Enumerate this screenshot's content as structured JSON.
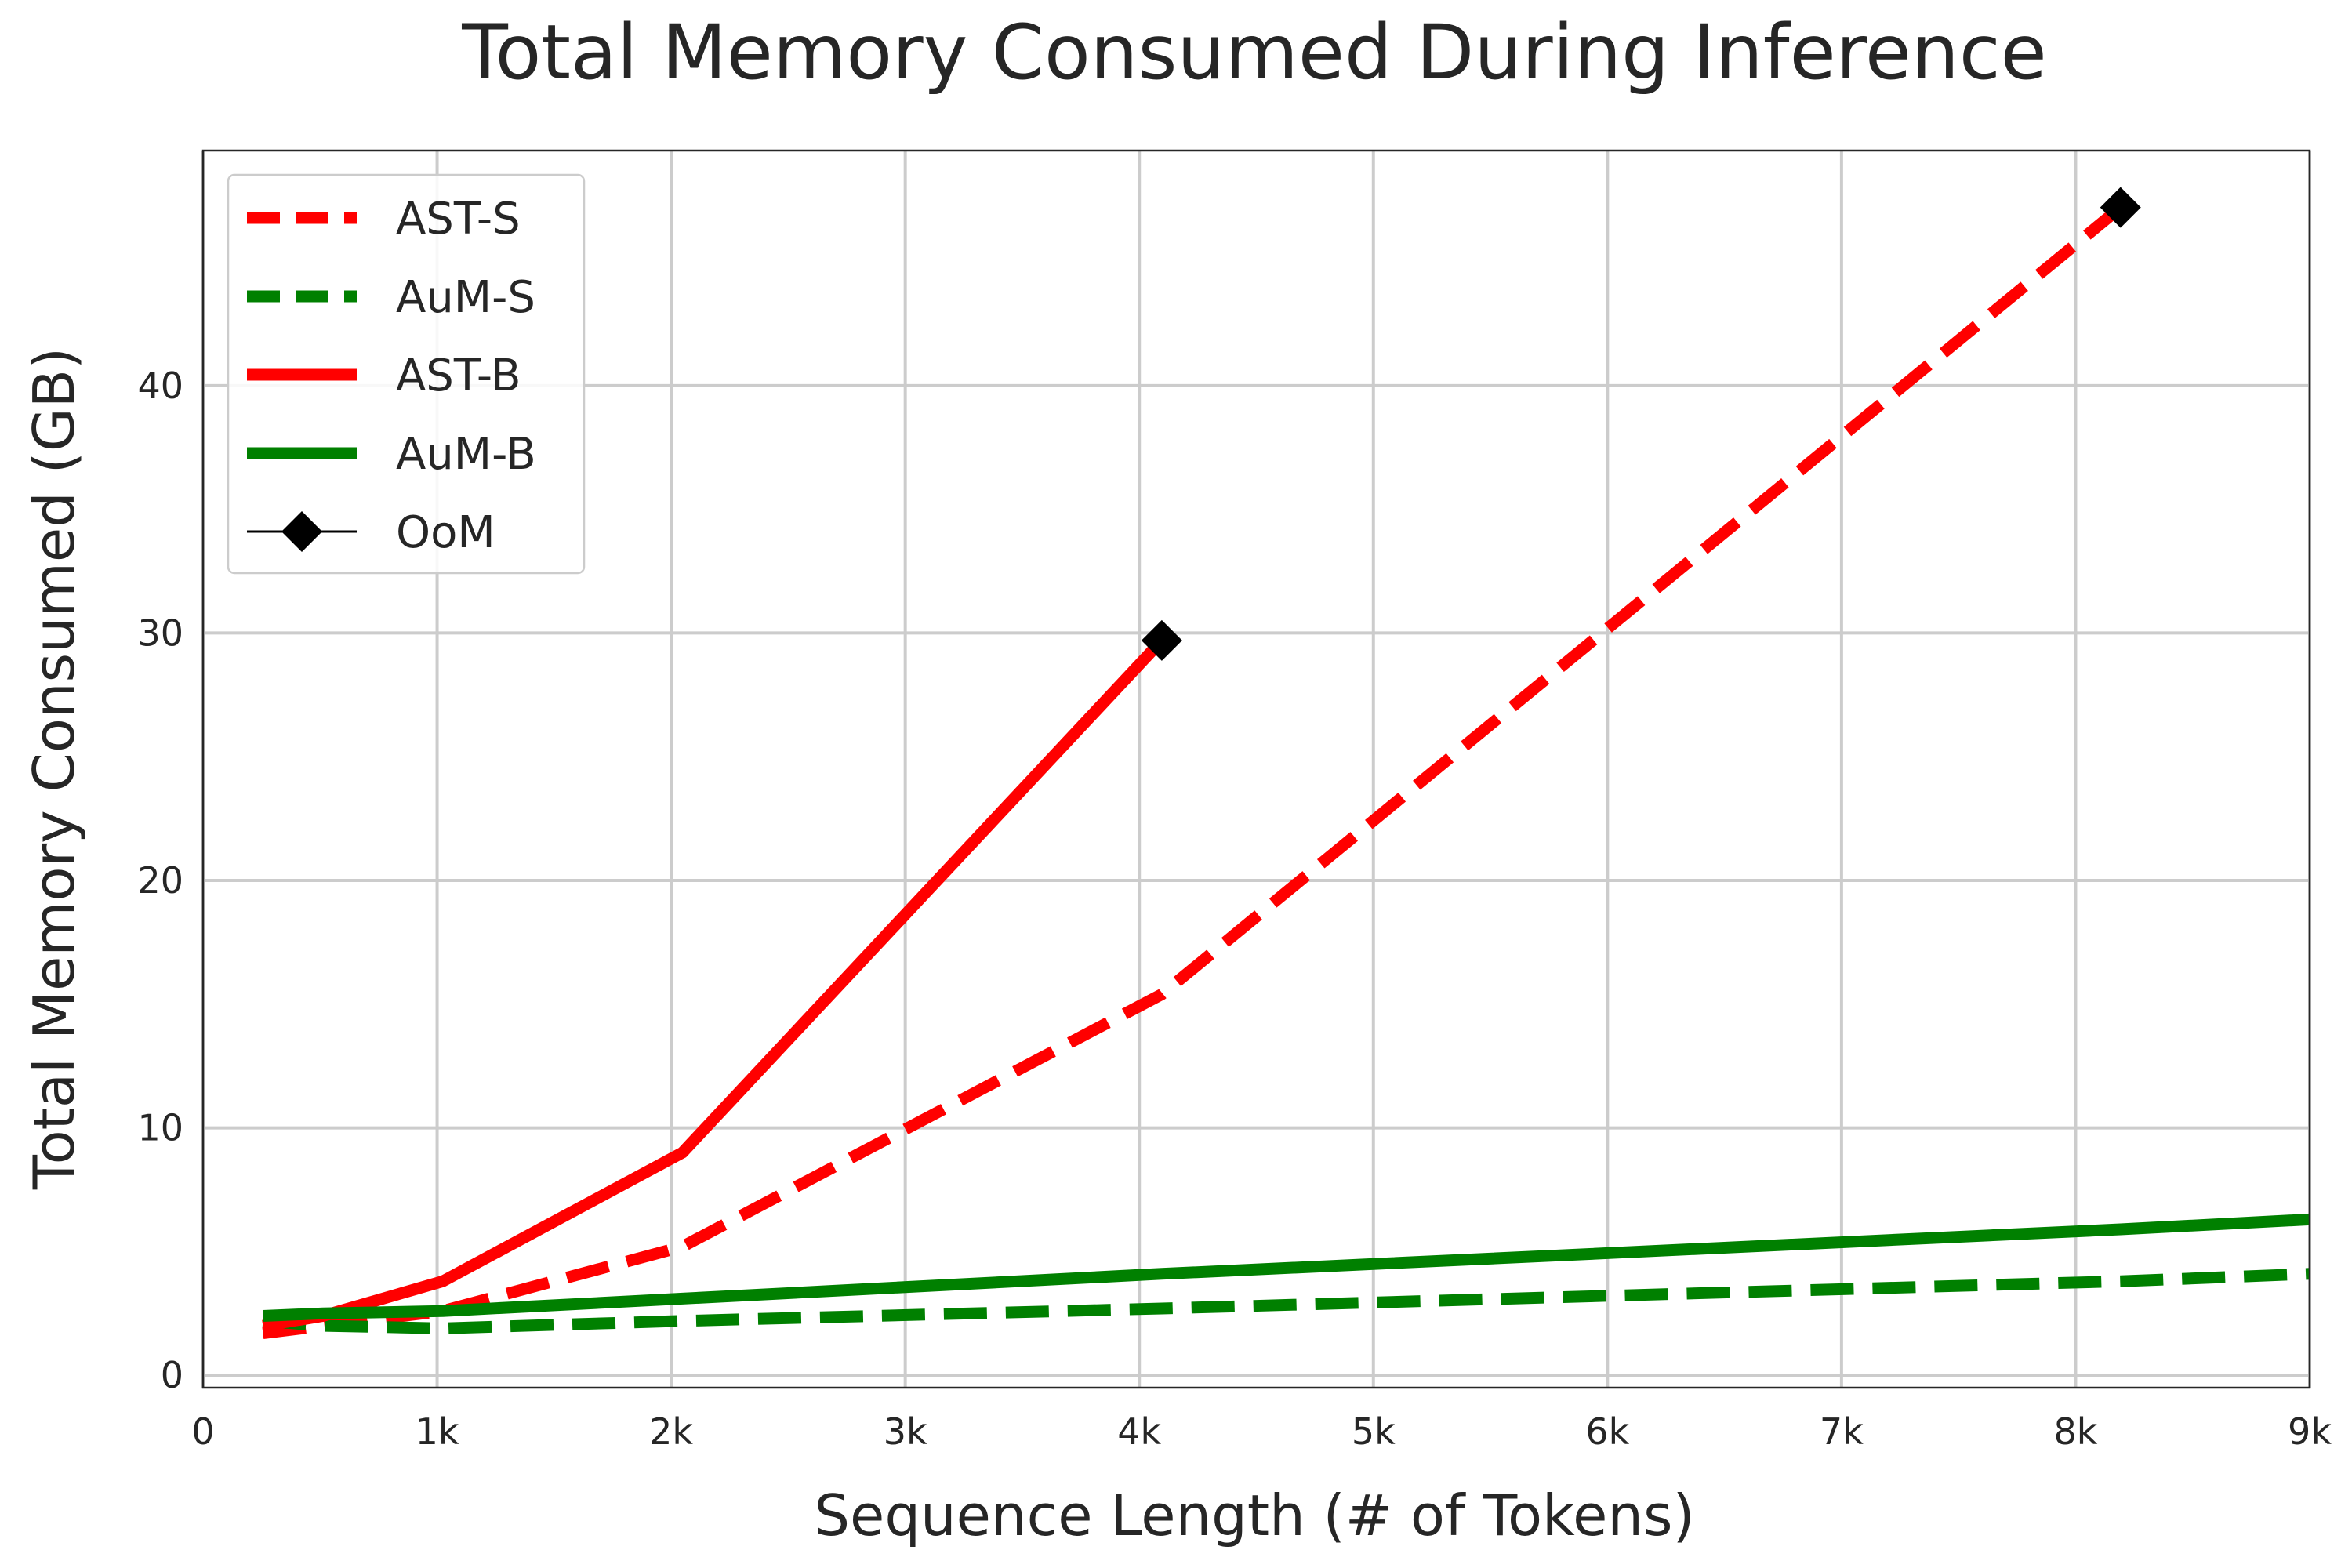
{
  "chart_data": {
    "type": "line",
    "title": "Total Memory Consumed During Inference",
    "xlabel": "Sequence Length (# of Tokens)",
    "ylabel": "Total Memory Consumed (GB)",
    "xlim": [
      0,
      9000
    ],
    "ylim": [
      -0.5,
      49.5
    ],
    "xticks": [
      0,
      1000,
      2000,
      3000,
      4000,
      5000,
      6000,
      7000,
      8000,
      9000
    ],
    "xtick_labels": [
      "0",
      "1k",
      "2k",
      "3k",
      "4k",
      "5k",
      "6k",
      "7k",
      "8k",
      "9k"
    ],
    "yticks": [
      0,
      10,
      20,
      30,
      40
    ],
    "ytick_labels": [
      "0",
      "10",
      "20",
      "30",
      "40"
    ],
    "grid": true,
    "legend_position": "top-left",
    "series": [
      {
        "name": "AST-S",
        "color": "#ff0000",
        "style": "dashed",
        "x": [
          256,
          512,
          1024,
          2048,
          4096,
          8192
        ],
        "y": [
          1.7,
          2.0,
          2.6,
          5.2,
          15.4,
          47.2
        ]
      },
      {
        "name": "AuM-S",
        "color": "#008000",
        "style": "dashed",
        "x": [
          256,
          512,
          1024,
          2048,
          4096,
          8192,
          9000
        ],
        "y": [
          2.2,
          2.0,
          1.9,
          2.2,
          2.7,
          3.8,
          4.1
        ]
      },
      {
        "name": "AST-B",
        "color": "#ff0000",
        "style": "solid",
        "x": [
          256,
          512,
          1024,
          2048,
          4096
        ],
        "y": [
          2.0,
          2.4,
          3.8,
          9.0,
          29.7
        ]
      },
      {
        "name": "AuM-B",
        "color": "#008000",
        "style": "solid",
        "x": [
          256,
          512,
          1024,
          2048,
          4096,
          8192,
          9000
        ],
        "y": [
          2.4,
          2.5,
          2.6,
          3.1,
          4.1,
          5.9,
          6.3
        ]
      }
    ],
    "markers": {
      "name": "OoM",
      "color": "#000000",
      "shape": "diamond",
      "points": [
        {
          "x": 4096,
          "y": 29.7
        },
        {
          "x": 8192,
          "y": 47.2
        }
      ]
    }
  }
}
